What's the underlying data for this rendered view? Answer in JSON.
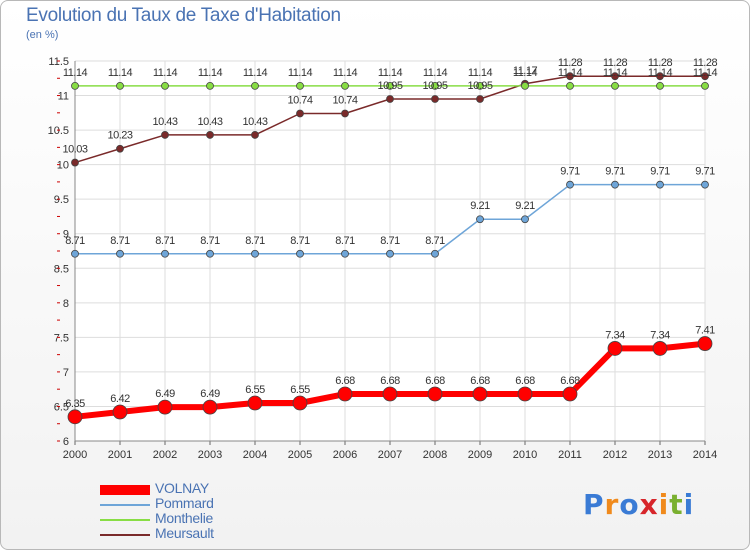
{
  "title": "Evolution du Taux de Taxe d'Habitation",
  "subtitle": "(en %)",
  "logo_text": "Proxiti",
  "chart_data": {
    "type": "line",
    "x": [
      2000,
      2001,
      2002,
      2003,
      2004,
      2005,
      2006,
      2007,
      2008,
      2009,
      2010,
      2011,
      2012,
      2013,
      2014
    ],
    "ylim": [
      6,
      11.5
    ],
    "yticks": [
      6,
      6.5,
      7,
      7.5,
      8,
      8.5,
      9,
      9.5,
      10,
      10.5,
      11,
      11.5
    ],
    "ytick_labels": [
      "6",
      "6.5",
      "7",
      "7.5",
      "8",
      "8.5",
      "9",
      "9.5",
      "10",
      "10.5",
      "11",
      "11.5"
    ],
    "grid": true,
    "legend_position": "bottom-left",
    "series": [
      {
        "name": "VOLNAY",
        "color": "#ff0000",
        "values": [
          6.35,
          6.42,
          6.49,
          6.49,
          6.55,
          6.55,
          6.68,
          6.68,
          6.68,
          6.68,
          6.68,
          6.68,
          7.34,
          7.34,
          7.41
        ],
        "labels": [
          "6.35",
          "6.42",
          "6.49",
          "6.49",
          "6.55",
          "6.55",
          "6.68",
          "6.68",
          "6.68",
          "6.68",
          "6.68",
          "6.68",
          "7.34",
          "7.34",
          "7.41"
        ]
      },
      {
        "name": "Pommard",
        "color": "#6ea5d8",
        "values": [
          8.71,
          8.71,
          8.71,
          8.71,
          8.71,
          8.71,
          8.71,
          8.71,
          8.71,
          9.21,
          9.21,
          9.71,
          9.71,
          9.71,
          9.71
        ],
        "labels": [
          "8.71",
          "8.71",
          "8.71",
          "8.71",
          "8.71",
          "8.71",
          "8.71",
          "8.71",
          "8.71",
          "9.21",
          "9.21",
          "9.71",
          "9.71",
          "9.71",
          "9.71"
        ]
      },
      {
        "name": "Monthelie",
        "color": "#88dd44",
        "values": [
          11.14,
          11.14,
          11.14,
          11.14,
          11.14,
          11.14,
          11.14,
          11.14,
          11.14,
          11.14,
          11.14,
          11.14,
          11.14,
          11.14,
          11.14
        ],
        "labels": [
          "11.14",
          "11.14",
          "11.14",
          "11.14",
          "11.14",
          "11.14",
          "11.14",
          "11.14",
          "11.14",
          "11.14",
          "11.14",
          "11.14",
          "11.14",
          "11.14",
          "11.14"
        ]
      },
      {
        "name": "Meursault",
        "color": "#7a2a2a",
        "values": [
          10.03,
          10.23,
          10.43,
          10.43,
          10.43,
          10.74,
          10.74,
          10.95,
          10.95,
          10.95,
          11.17,
          11.28,
          11.28,
          11.28,
          11.28
        ],
        "labels": [
          "10.03",
          "10.23",
          "10.43",
          "10.43",
          "10.43",
          "10.74",
          "10.74",
          "10.95",
          "10.95",
          "10.95",
          "11.17",
          "11.28",
          "11.28",
          "11.28",
          "11.28"
        ]
      }
    ]
  }
}
